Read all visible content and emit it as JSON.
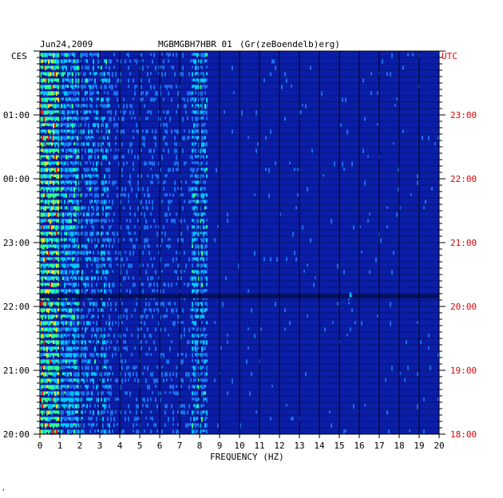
{
  "header": {
    "date": "Jun24,2009",
    "station_overprint": [
      "MGBMGBH7HBR 01",
      "(Gr(zeBoendelb)erg)"
    ],
    "left_timezone": "CES",
    "right_timezone": "UTC"
  },
  "footer": {
    "corner_mark": ","
  },
  "colors": {
    "background_field": "#0a1ea8",
    "low": "#0a1ea8",
    "mid": "#00c8ff",
    "high_yellow": "#f0e020",
    "high_red": "#e02010",
    "right_axis_text": "#e00000",
    "grid": "#000000"
  },
  "chart_data": {
    "type": "heatmap",
    "title": "",
    "xlabel": "FREQUENCY (HZ)",
    "xlim": [
      0,
      20
    ],
    "x_ticks": [
      "0",
      "1",
      "2",
      "3",
      "4",
      "5",
      "6",
      "7",
      "8",
      "9",
      "10",
      "11",
      "12",
      "13",
      "14",
      "15",
      "16",
      "17",
      "18",
      "19",
      "20"
    ],
    "left_time_ticks": [
      "01:00",
      "00:00",
      "23:00",
      "22:00",
      "21:00",
      "20:00"
    ],
    "right_time_ticks": [
      "23:00",
      "22:00",
      "21:00",
      "20:00",
      "19:00",
      "18:00"
    ],
    "right_time_ticks_range_utc": [
      "18:00",
      "23:59"
    ],
    "rows": 60,
    "notes": "Energy concentrated below ~3.5 Hz with hot spots near 0.3-0.7 Hz; secondary line near 8 Hz; weak spot near 15.5 Hz around 20:10 UTC"
  }
}
